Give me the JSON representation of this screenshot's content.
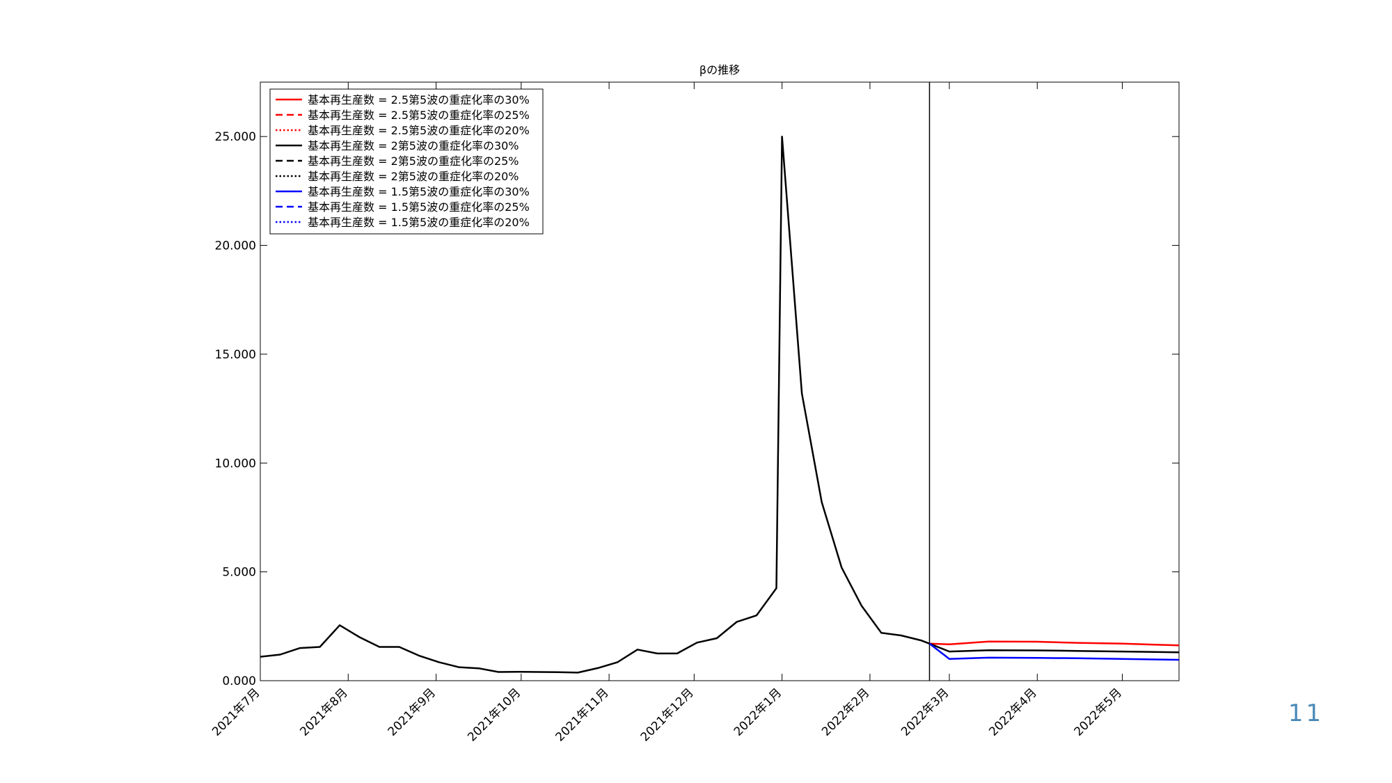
{
  "page_number": "11",
  "chart_data": {
    "type": "line",
    "title": "βの推移",
    "xlabel": "",
    "ylabel": "",
    "x_ticks": [
      "2021-07-01",
      "2021-08-01",
      "2021-09-01",
      "2021-10-01",
      "2021-11-01",
      "2021-12-01",
      "2022-01-01",
      "2022-02-01",
      "2022-03-01",
      "2022-04-01",
      "2022-05-01"
    ],
    "x_tick_labels": [
      "2021年7月",
      "2021年8月",
      "2021年9月",
      "2021年10月",
      "2021年11月",
      "2021年12月",
      "2022年1月",
      "2022年2月",
      "2022年3月",
      "2022年4月",
      "2022年5月"
    ],
    "xlim": [
      "2021-07-01",
      "2022-05-21"
    ],
    "ylim": [
      0,
      27.5
    ],
    "y_ticks": [
      0,
      5,
      10,
      15,
      20,
      25
    ],
    "y_tick_labels": [
      "0.000",
      "5.000",
      "10.000",
      "15.000",
      "20.000",
      "25.000"
    ],
    "grid": false,
    "legend_position": "top-left",
    "vertical_line": "2022-02-22",
    "history": {
      "x": [
        "2021-07-01",
        "2021-07-08",
        "2021-07-15",
        "2021-07-22",
        "2021-07-29",
        "2021-08-05",
        "2021-08-12",
        "2021-08-19",
        "2021-08-26",
        "2021-09-02",
        "2021-09-09",
        "2021-09-16",
        "2021-09-23",
        "2021-09-30",
        "2021-10-07",
        "2021-10-14",
        "2021-10-21",
        "2021-10-28",
        "2021-11-04",
        "2021-11-11",
        "2021-11-18",
        "2021-11-25",
        "2021-12-02",
        "2021-12-09",
        "2021-12-16",
        "2021-12-23",
        "2021-12-30",
        "2022-01-01",
        "2022-01-08",
        "2022-01-15",
        "2022-01-22",
        "2022-01-29",
        "2022-02-05",
        "2022-02-12",
        "2022-02-19",
        "2022-02-22"
      ],
      "y": [
        1.1,
        1.2,
        1.5,
        1.55,
        2.55,
        2.0,
        1.55,
        1.55,
        1.15,
        0.85,
        0.62,
        0.57,
        0.4,
        0.41,
        0.4,
        0.39,
        0.37,
        0.58,
        0.85,
        1.43,
        1.25,
        1.25,
        1.75,
        1.95,
        2.7,
        3.0,
        4.25,
        25.0,
        13.2,
        8.2,
        5.2,
        3.45,
        2.2,
        2.08,
        1.85,
        1.7
      ]
    },
    "series": [
      {
        "name": "基本再生産数 = 2.5第5波の重症化率の30%",
        "color": "#ff0000",
        "dash": "solid",
        "x": [
          "2022-02-22",
          "2022-03-01",
          "2022-03-15",
          "2022-04-01",
          "2022-04-15",
          "2022-05-01",
          "2022-05-21"
        ],
        "y": [
          1.7,
          1.67,
          1.8,
          1.79,
          1.74,
          1.7,
          1.62
        ]
      },
      {
        "name": "基本再生産数 = 2.5第5波の重症化率の25%",
        "color": "#ff0000",
        "dash": "dashed",
        "x": [],
        "y": []
      },
      {
        "name": "基本再生産数 = 2.5第5波の重症化率の20%",
        "color": "#ff0000",
        "dash": "dotted",
        "x": [],
        "y": []
      },
      {
        "name": "基本再生産数 = 2第5波の重症化率の30%",
        "color": "#000000",
        "dash": "solid",
        "x": [
          "2022-02-22",
          "2022-03-01",
          "2022-03-15",
          "2022-04-01",
          "2022-04-15",
          "2022-05-01",
          "2022-05-21"
        ],
        "y": [
          1.7,
          1.34,
          1.4,
          1.39,
          1.37,
          1.34,
          1.3
        ]
      },
      {
        "name": "基本再生産数 = 2第5波の重症化率の25%",
        "color": "#000000",
        "dash": "dashed",
        "x": [],
        "y": []
      },
      {
        "name": "基本再生産数 = 2第5波の重症化率の20%",
        "color": "#000000",
        "dash": "dotted",
        "x": [],
        "y": []
      },
      {
        "name": "基本再生産数 = 1.5第5波の重症化率の30%",
        "color": "#0000ff",
        "dash": "solid",
        "x": [
          "2022-02-22",
          "2022-03-01",
          "2022-03-15",
          "2022-04-01",
          "2022-04-15",
          "2022-05-01",
          "2022-05-21"
        ],
        "y": [
          1.7,
          1.0,
          1.06,
          1.05,
          1.03,
          1.0,
          0.96
        ]
      },
      {
        "name": "基本再生産数 = 1.5第5波の重症化率の25%",
        "color": "#0000ff",
        "dash": "dashed",
        "x": [],
        "y": []
      },
      {
        "name": "基本再生産数 = 1.5第5波の重症化率の20%",
        "color": "#0000ff",
        "dash": "dotted",
        "x": [],
        "y": []
      }
    ]
  }
}
